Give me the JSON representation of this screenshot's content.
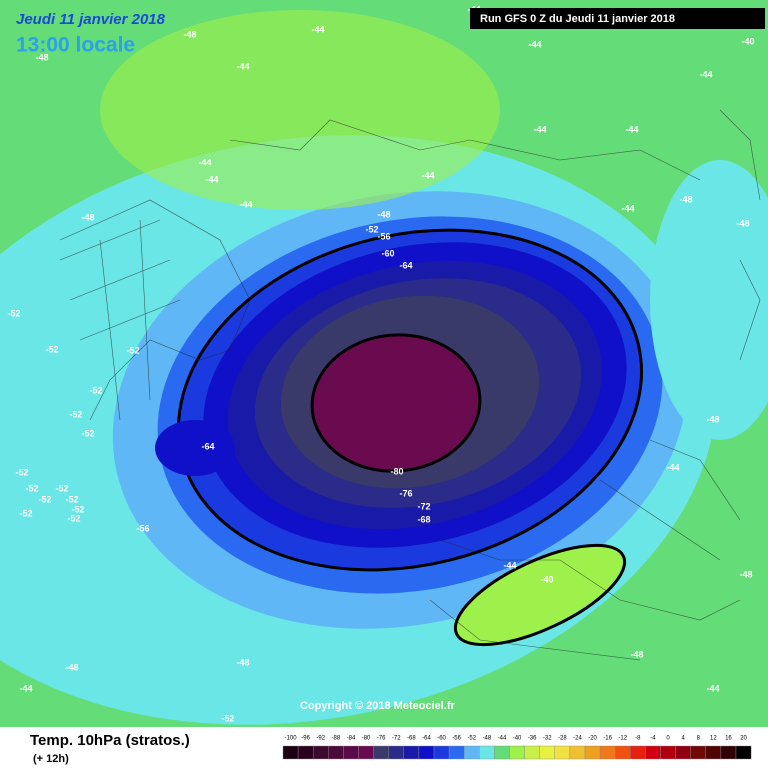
{
  "header": {
    "date": "Jeudi 11 janvier 2018",
    "time": "13:00 locale",
    "run": "Run GFS 0 Z du Jeudi 11 janvier 2018"
  },
  "footer": {
    "title": "Temp. 10hPa (stratos.)",
    "lead": "(+ 12h)",
    "copyright": "Copyright © 2018 Meteociel.fr"
  },
  "legend": {
    "ticks": [
      -100,
      -96,
      -92,
      -88,
      -84,
      -80,
      -76,
      -72,
      -68,
      -64,
      -60,
      -56,
      -52,
      -48,
      -44,
      -40,
      -36,
      -32,
      -28,
      -24,
      -20,
      -16,
      -12,
      -8,
      -4,
      0,
      4,
      8,
      12,
      16,
      20
    ],
    "colors": [
      "#1a0010",
      "#2a001e",
      "#3c0a2e",
      "#4a0a3a",
      "#5a0a48",
      "#6a0b50",
      "#3a3a6a",
      "#2b2b8a",
      "#1a1aa8",
      "#1010c8",
      "#1a3ae0",
      "#2a6af0",
      "#5fb8f5",
      "#6ae6e6",
      "#64dc78",
      "#9ef04a",
      "#c8f048",
      "#e8f040",
      "#f0e040",
      "#f0c030",
      "#f0a020",
      "#f07818",
      "#f05010",
      "#e82010",
      "#d00010",
      "#b00010",
      "#900010",
      "#700808",
      "#500404",
      "#300202",
      "#000000"
    ]
  },
  "contour_labels": [
    "-48",
    "-44",
    "-48",
    "-44",
    "-44",
    "-44",
    "-40",
    "-44",
    "-44",
    "-44",
    "-44",
    "-44",
    "-44",
    "-44",
    "-44",
    "-48",
    "-48",
    "-48",
    "-52",
    "-56",
    "-60",
    "-64",
    "-48",
    "-52",
    "-52",
    "-52",
    "-52",
    "-52",
    "-52",
    "-64",
    "-80",
    "-76",
    "-72",
    "-68",
    "-48",
    "-44",
    "-52",
    "-52",
    "-52",
    "-52",
    "-52",
    "-52",
    "-52",
    "-52",
    "-56",
    "-44",
    "-40",
    "-48",
    "-48",
    "-48",
    "-48",
    "-44",
    "-44",
    "-52"
  ]
}
